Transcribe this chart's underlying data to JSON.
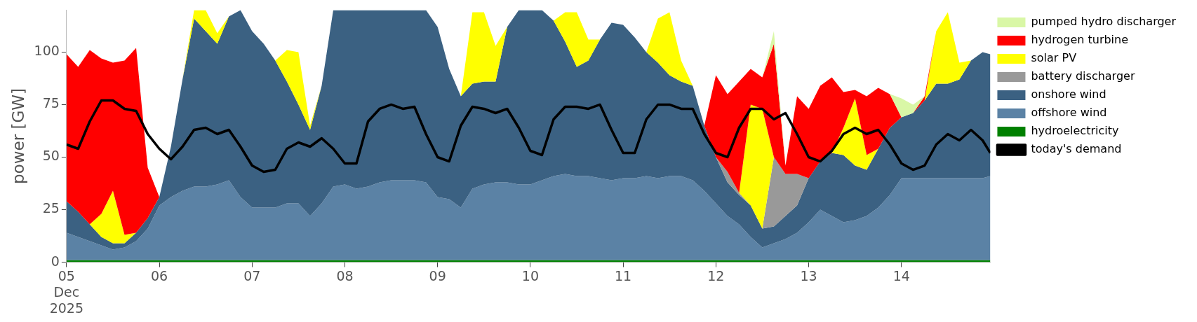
{
  "chart_data": {
    "type": "area",
    "stacked": true,
    "ylabel": "power [GW]",
    "legend": "right",
    "x": [
      "2025-12-05T00:00",
      "2025-12-05T03:00",
      "2025-12-05T06:00",
      "2025-12-05T09:00",
      "2025-12-05T12:00",
      "2025-12-05T15:00",
      "2025-12-05T18:00",
      "2025-12-05T21:00",
      "2025-12-06T00:00",
      "2025-12-06T03:00",
      "2025-12-06T06:00",
      "2025-12-06T09:00",
      "2025-12-06T12:00",
      "2025-12-06T15:00",
      "2025-12-06T18:00",
      "2025-12-06T21:00",
      "2025-12-07T00:00",
      "2025-12-07T03:00",
      "2025-12-07T06:00",
      "2025-12-07T09:00",
      "2025-12-07T12:00",
      "2025-12-07T15:00",
      "2025-12-07T18:00",
      "2025-12-07T21:00",
      "2025-12-08T00:00",
      "2025-12-08T03:00",
      "2025-12-08T06:00",
      "2025-12-08T09:00",
      "2025-12-08T12:00",
      "2025-12-08T15:00",
      "2025-12-08T18:00",
      "2025-12-08T21:00",
      "2025-12-09T00:00",
      "2025-12-09T03:00",
      "2025-12-09T06:00",
      "2025-12-09T09:00",
      "2025-12-09T12:00",
      "2025-12-09T15:00",
      "2025-12-09T18:00",
      "2025-12-09T21:00",
      "2025-12-10T00:00",
      "2025-12-10T03:00",
      "2025-12-10T06:00",
      "2025-12-10T09:00",
      "2025-12-10T12:00",
      "2025-12-10T15:00",
      "2025-12-10T18:00",
      "2025-12-10T21:00",
      "2025-12-11T00:00",
      "2025-12-11T03:00",
      "2025-12-11T06:00",
      "2025-12-11T09:00",
      "2025-12-11T12:00",
      "2025-12-11T15:00",
      "2025-12-11T18:00",
      "2025-12-11T21:00",
      "2025-12-12T00:00",
      "2025-12-12T03:00",
      "2025-12-12T06:00",
      "2025-12-12T09:00",
      "2025-12-12T12:00",
      "2025-12-12T15:00",
      "2025-12-12T18:00",
      "2025-12-12T21:00",
      "2025-12-13T00:00",
      "2025-12-13T03:00",
      "2025-12-13T06:00",
      "2025-12-13T09:00",
      "2025-12-13T12:00",
      "2025-12-13T15:00",
      "2025-12-13T18:00",
      "2025-12-13T21:00",
      "2025-12-14T00:00",
      "2025-12-14T03:00",
      "2025-12-14T06:00",
      "2025-12-14T09:00",
      "2025-12-14T12:00",
      "2025-12-14T15:00",
      "2025-12-14T18:00",
      "2025-12-14T21:00",
      "2025-12-14T23:00"
    ],
    "xlim": [
      "2025-12-05T00:00",
      "2025-12-14T23:00"
    ],
    "xticks": [
      {
        "value": "2025-12-05",
        "label": "05\nDec\n2025"
      },
      {
        "value": "2025-12-06",
        "label": "06"
      },
      {
        "value": "2025-12-07",
        "label": "07"
      },
      {
        "value": "2025-12-08",
        "label": "08"
      },
      {
        "value": "2025-12-09",
        "label": "09"
      },
      {
        "value": "2025-12-10",
        "label": "10"
      },
      {
        "value": "2025-12-11",
        "label": "11"
      },
      {
        "value": "2025-12-12",
        "label": "12"
      },
      {
        "value": "2025-12-13",
        "label": "13"
      },
      {
        "value": "2025-12-14",
        "label": "14"
      }
    ],
    "ylim": [
      0,
      120
    ],
    "yticks": [
      0,
      25,
      50,
      75,
      100
    ],
    "series": [
      {
        "name": "hydroelectricity",
        "color": "#008000",
        "values": [
          1,
          1,
          1,
          1,
          1,
          1,
          1,
          1,
          1,
          1,
          1,
          1,
          1,
          1,
          1,
          1,
          1,
          1,
          1,
          1,
          1,
          1,
          1,
          1,
          1,
          1,
          1,
          1,
          1,
          1,
          1,
          1,
          1,
          1,
          1,
          1,
          1,
          1,
          1,
          1,
          1,
          1,
          1,
          1,
          1,
          1,
          1,
          1,
          1,
          1,
          1,
          1,
          1,
          1,
          1,
          1,
          1,
          1,
          1,
          1,
          1,
          1,
          1,
          1,
          1,
          1,
          1,
          1,
          1,
          1,
          1,
          1,
          1,
          1,
          1,
          1,
          1,
          1,
          1,
          1,
          1
        ]
      },
      {
        "name": "offshore wind",
        "color": "#5b82a5",
        "values": [
          13,
          11,
          9,
          7,
          5,
          6,
          9,
          15,
          26,
          30,
          33,
          35,
          35,
          36,
          38,
          30,
          25,
          25,
          25,
          27,
          27,
          21,
          27,
          35,
          36,
          34,
          35,
          37,
          38,
          38,
          38,
          37,
          30,
          29,
          25,
          34,
          36,
          37,
          37,
          36,
          36,
          38,
          40,
          41,
          40,
          40,
          39,
          38,
          39,
          39,
          40,
          39,
          40,
          40,
          38,
          33,
          27,
          21,
          17,
          11,
          6,
          8,
          10,
          13,
          18,
          24,
          21,
          18,
          19,
          21,
          25,
          31,
          39,
          39,
          39,
          39,
          39,
          39,
          39,
          39,
          40
        ]
      },
      {
        "name": "onshore wind",
        "color": "#3b6182",
        "values": [
          15,
          12,
          8,
          4,
          3,
          2,
          4,
          5,
          4,
          24,
          53,
          80,
          74,
          67,
          78,
          89,
          84,
          78,
          70,
          58,
          47,
          41,
          56,
          84,
          83,
          85,
          84,
          82,
          81,
          81,
          81,
          82,
          81,
          62,
          53,
          50,
          49,
          48,
          74,
          83,
          83,
          81,
          74,
          63,
          52,
          55,
          66,
          75,
          73,
          67,
          59,
          55,
          48,
          45,
          45,
          31,
          22,
          16,
          14,
          15,
          9,
          8,
          11,
          13,
          21,
          23,
          30,
          32,
          26,
          22,
          28,
          32,
          29,
          31,
          37,
          45,
          45,
          47,
          56,
          60,
          58
        ]
      },
      {
        "name": "battery discharger",
        "color": "#999999",
        "values": [
          null,
          null,
          null,
          null,
          null,
          null,
          null,
          null,
          null,
          null,
          null,
          null,
          null,
          null,
          null,
          null,
          null,
          null,
          null,
          null,
          null,
          null,
          null,
          null,
          null,
          null,
          null,
          null,
          null,
          null,
          null,
          null,
          null,
          null,
          null,
          null,
          null,
          null,
          null,
          null,
          null,
          null,
          null,
          null,
          null,
          null,
          null,
          null,
          null,
          null,
          null,
          null,
          null,
          null,
          null,
          null,
          0,
          5,
          1,
          0,
          0,
          33,
          20,
          15,
          0,
          null,
          null,
          null,
          null,
          null,
          null,
          null,
          null,
          null,
          null,
          null,
          null,
          null,
          null,
          null,
          null
        ]
      },
      {
        "name": "solar PV",
        "color": "#ffff00",
        "values": [
          null,
          null,
          0,
          11,
          25,
          4,
          0,
          null,
          null,
          null,
          0,
          4,
          10,
          5,
          0,
          null,
          null,
          null,
          0,
          15,
          25,
          2,
          0,
          null,
          null,
          null,
          null,
          null,
          null,
          null,
          null,
          null,
          null,
          null,
          0,
          34,
          33,
          17,
          0,
          null,
          null,
          null,
          0,
          14,
          26,
          10,
          0,
          null,
          null,
          null,
          0,
          21,
          30,
          10,
          0,
          null,
          null,
          null,
          0,
          48,
          57,
          0,
          null,
          null,
          null,
          null,
          0,
          13,
          32,
          7,
          0,
          null,
          null,
          null,
          0,
          25,
          34,
          8,
          0,
          null,
          null
        ]
      },
      {
        "name": "hydrogen turbine",
        "color": "#ff0000",
        "values": [
          70,
          69,
          83,
          74,
          61,
          83,
          88,
          24,
          0,
          null,
          null,
          null,
          null,
          null,
          null,
          null,
          null,
          null,
          null,
          null,
          null,
          null,
          null,
          null,
          null,
          null,
          null,
          null,
          null,
          null,
          null,
          null,
          null,
          null,
          null,
          null,
          null,
          null,
          null,
          null,
          null,
          null,
          null,
          null,
          null,
          null,
          null,
          null,
          null,
          null,
          null,
          null,
          null,
          null,
          null,
          0,
          39,
          37,
          53,
          17,
          15,
          54,
          4,
          37,
          33,
          36,
          36,
          17,
          4,
          28,
          29,
          16,
          0,
          0,
          2,
          0,
          null,
          null,
          null,
          null,
          null
        ]
      },
      {
        "name": "pumped hydro discharger",
        "color": "#d9f7a6",
        "values": [
          null,
          null,
          null,
          null,
          null,
          null,
          null,
          null,
          null,
          null,
          null,
          null,
          null,
          null,
          null,
          null,
          null,
          null,
          null,
          null,
          null,
          null,
          null,
          null,
          null,
          null,
          null,
          null,
          null,
          null,
          null,
          null,
          null,
          null,
          null,
          null,
          null,
          null,
          null,
          null,
          null,
          null,
          null,
          null,
          null,
          null,
          null,
          null,
          null,
          null,
          null,
          null,
          null,
          null,
          null,
          null,
          null,
          null,
          null,
          null,
          0,
          6,
          0,
          null,
          null,
          null,
          null,
          null,
          null,
          null,
          null,
          0,
          9,
          4,
          0,
          null,
          null,
          null,
          null,
          null,
          null
        ]
      },
      {
        "name": "today's demand",
        "type": "line",
        "color": "#000000",
        "values": [
          56,
          54,
          67,
          77,
          77,
          73,
          72,
          61,
          54,
          49,
          55,
          63,
          64,
          61,
          63,
          55,
          46,
          43,
          44,
          54,
          57,
          55,
          59,
          54,
          47,
          47,
          67,
          73,
          75,
          73,
          74,
          61,
          50,
          48,
          65,
          74,
          73,
          71,
          73,
          64,
          53,
          51,
          68,
          74,
          74,
          73,
          75,
          63,
          52,
          52,
          68,
          75,
          75,
          73,
          73,
          61,
          52,
          50,
          64,
          73,
          73,
          68,
          71,
          61,
          50,
          48,
          53,
          61,
          64,
          61,
          63,
          56,
          47,
          44,
          46,
          56,
          61,
          58,
          63,
          58,
          52
        ]
      }
    ]
  }
}
